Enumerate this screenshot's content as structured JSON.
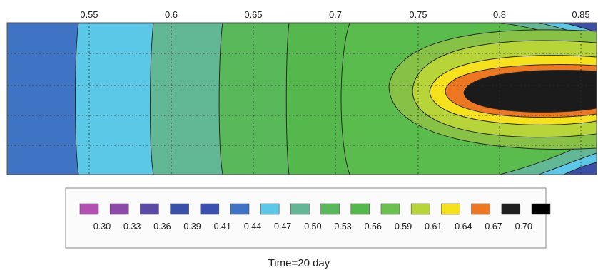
{
  "chart_data": {
    "type": "heatmap",
    "title": "",
    "xlabel": "",
    "ylabel": "",
    "x_ticks": [
      "0.55",
      "0.6",
      "0.65",
      "0.7",
      "0.75",
      "0.8",
      "0.85"
    ],
    "x_tick_values": [
      0.55,
      0.6,
      0.65,
      0.7,
      0.75,
      0.8,
      0.85
    ],
    "xlim": [
      0.52,
      0.87
    ],
    "grid": true,
    "colorbar": {
      "levels": [
        "",
        "",
        "",
        "",
        "",
        "",
        "",
        "",
        "",
        "",
        "",
        "",
        "",
        "",
        ""
      ],
      "labels": [
        "0.30",
        "0.33",
        "0.36",
        "0.39",
        "0.41",
        "0.44",
        "0.47",
        "0.50",
        "0.53",
        "0.56",
        "0.59",
        "0.61",
        "0.64",
        "0.67",
        "0.70"
      ],
      "colors": [
        "#b24fb0",
        "#8c4aa8",
        "#5a4aa6",
        "#3a50a8",
        "#3a4fb0",
        "#3f74c4",
        "#5cc8e8",
        "#62b894",
        "#58b85a",
        "#55b84c",
        "#6cc050",
        "#b7d438",
        "#f6e21c",
        "#ee7722",
        "#202020"
      ]
    },
    "bands": [
      {
        "x_end": 0.555,
        "value": 0.44
      },
      {
        "x_end": 0.6,
        "value": 0.47
      },
      {
        "x_end": 0.635,
        "value": 0.5
      },
      {
        "x_end": 0.7,
        "value": 0.53
      },
      {
        "x_end": 0.87,
        "value": 0.56
      }
    ],
    "hotspot": {
      "x_center": 0.8,
      "y_center": 0.55,
      "peak": 0.7
    },
    "caption": "Time=20 day"
  }
}
